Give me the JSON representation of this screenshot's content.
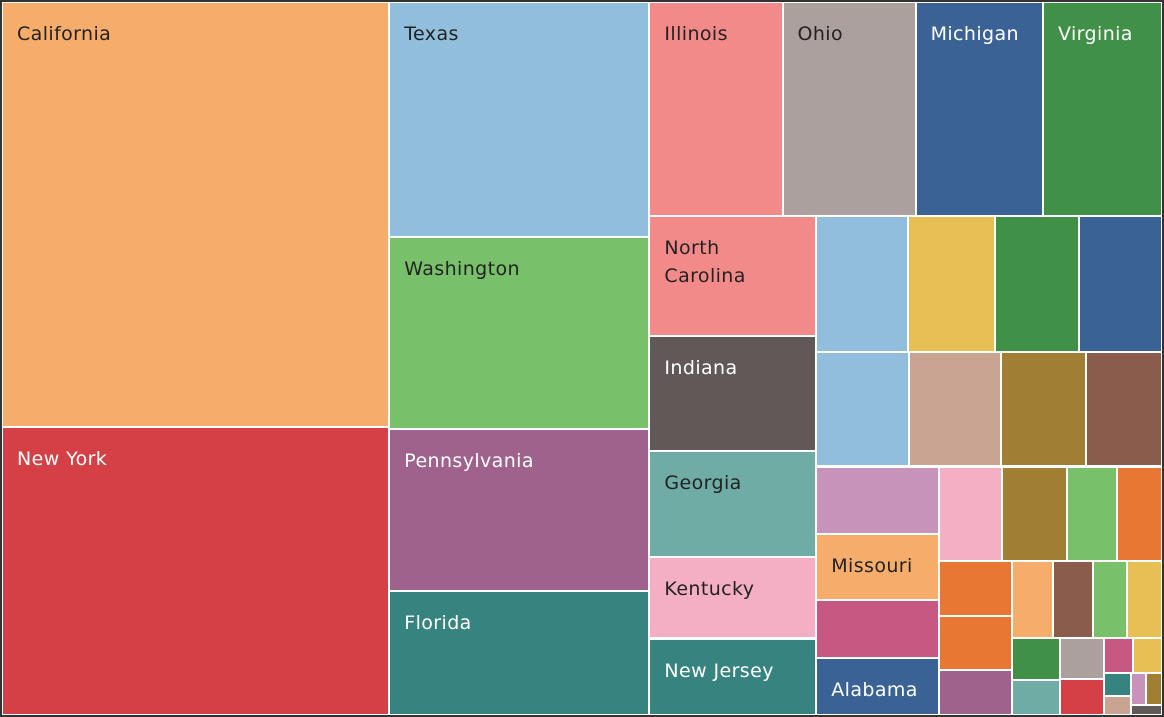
{
  "chart_data": {
    "type": "treemap",
    "categories": [
      "California",
      "New York",
      "Texas",
      "Washington",
      "Pennsylvania",
      "Florida",
      "Illinois",
      "Ohio",
      "Michigan",
      "Virginia",
      "North Carolina",
      "Indiana",
      "Georgia",
      "Kentucky",
      "New Jersey",
      null,
      null,
      null,
      null,
      null,
      null,
      null,
      null,
      null,
      "Missouri",
      null,
      "Alabama",
      null,
      null,
      null,
      null,
      null,
      null,
      null,
      null,
      null,
      null,
      null,
      null,
      null,
      null,
      null,
      null,
      null,
      null,
      null,
      null,
      null,
      null
    ],
    "values": [
      163.7,
      111.1,
      60.8,
      49.7,
      42.1,
      32.0,
      28.3,
      28.3,
      27.1,
      25.3,
      20.0,
      19.0,
      17.7,
      13.5,
      12.7,
      12.5,
      11.7,
      11.4,
      11.3,
      10.6,
      10.4,
      9.7,
      8.7,
      8.2,
      8.1,
      7.0,
      7.0,
      5.9,
      6.1,
      4.7,
      4.2,
      4.0,
      3.9,
      3.3,
      3.2,
      3.1,
      2.6,
      2.7,
      2.0,
      1.7,
      1.8,
      1.6,
      1.0,
      1.0,
      0.6,
      0.5,
      0.5,
      0.5,
      0.3
    ],
    "colors": [
      "#f6ad6b",
      "#d44045",
      "#91bedc",
      "#78c06a",
      "#9e628c",
      "#368380",
      "#f28a89",
      "#aba09d",
      "#3a6294",
      "#409147",
      "#f28a89",
      "#615858",
      "#6faca5",
      "#f4afc5",
      "#368380",
      "#91bedc",
      "#e8bf54",
      "#409147",
      "#3a6294",
      "#91bedc",
      "#c9a492",
      "#a07f35",
      "#895c4c",
      "#c793ba",
      "#f6ad6b",
      "#c65882",
      "#3a6294",
      "#f4afc5",
      "#a07f35",
      "#78c06a",
      "#e77732",
      "#e77732",
      "#e77732",
      "#9e628c",
      "#f6ad6b",
      "#895c4c",
      "#78c06a",
      "#e8bf54",
      "#409147",
      "#6faca5",
      "#aba09d",
      "#d44045",
      "#c65882",
      "#e8bf54",
      "#368380",
      "#c9a492",
      "#c793ba",
      "#a07f35",
      "#615858"
    ]
  }
}
